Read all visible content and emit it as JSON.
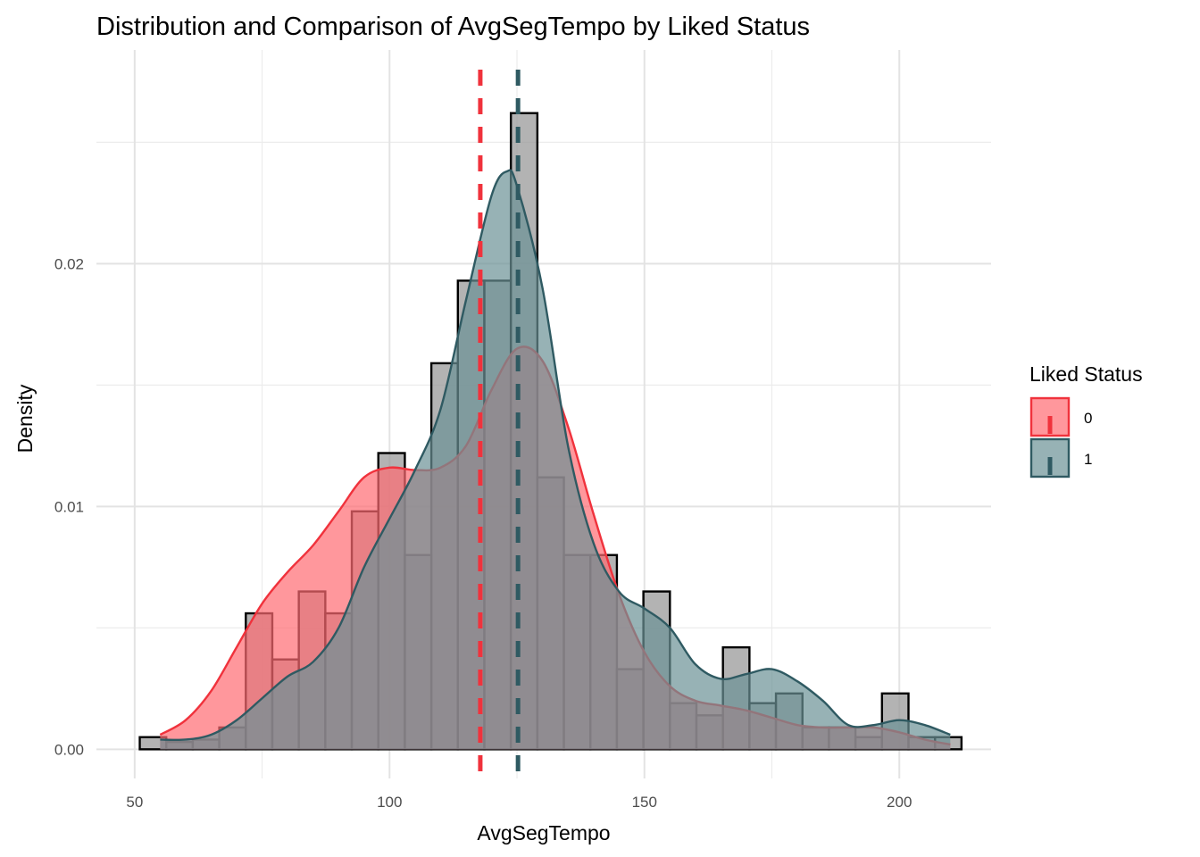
{
  "chart_data": {
    "type": "histogram-density",
    "title": "Distribution and Comparison of AvgSegTempo by Liked Status",
    "xlabel": "AvgSegTempo",
    "ylabel": "Density",
    "xlim": [
      42.5,
      218
    ],
    "ylim": [
      -0.0012,
      0.0288
    ],
    "x_ticks": [
      50,
      100,
      150,
      200
    ],
    "x_tick_labels": [
      "50",
      "100",
      "150",
      "200"
    ],
    "y_ticks": [
      0,
      0.01,
      0.02
    ],
    "y_tick_labels": [
      "0.00",
      "0.01",
      "0.02"
    ],
    "grid": true,
    "histogram": {
      "fill": "#999999",
      "edge": "#000000",
      "bins": [
        {
          "x0": 51.0,
          "x1": 56.2,
          "density": 0.0005
        },
        {
          "x0": 56.2,
          "x1": 61.4,
          "density": 0.0003
        },
        {
          "x0": 61.4,
          "x1": 66.6,
          "density": 0.0004
        },
        {
          "x0": 66.6,
          "x1": 71.8,
          "density": 0.0009
        },
        {
          "x0": 71.8,
          "x1": 77.0,
          "density": 0.0056
        },
        {
          "x0": 77.0,
          "x1": 82.2,
          "density": 0.0037
        },
        {
          "x0": 82.2,
          "x1": 87.4,
          "density": 0.0065
        },
        {
          "x0": 87.4,
          "x1": 92.6,
          "density": 0.0056
        },
        {
          "x0": 92.6,
          "x1": 97.8,
          "density": 0.0098
        },
        {
          "x0": 97.8,
          "x1": 103.0,
          "density": 0.0122
        },
        {
          "x0": 103.0,
          "x1": 108.2,
          "density": 0.008
        },
        {
          "x0": 108.2,
          "x1": 113.4,
          "density": 0.0159
        },
        {
          "x0": 113.4,
          "x1": 118.6,
          "density": 0.0193
        },
        {
          "x0": 118.6,
          "x1": 123.8,
          "density": 0.0193
        },
        {
          "x0": 123.8,
          "x1": 129.0,
          "density": 0.0262
        },
        {
          "x0": 129.0,
          "x1": 134.2,
          "density": 0.0112
        },
        {
          "x0": 134.2,
          "x1": 139.4,
          "density": 0.008
        },
        {
          "x0": 139.4,
          "x1": 144.6,
          "density": 0.008
        },
        {
          "x0": 144.6,
          "x1": 149.8,
          "density": 0.0033
        },
        {
          "x0": 149.8,
          "x1": 155.0,
          "density": 0.0065
        },
        {
          "x0": 155.0,
          "x1": 160.2,
          "density": 0.0019
        },
        {
          "x0": 160.2,
          "x1": 165.4,
          "density": 0.0014
        },
        {
          "x0": 165.4,
          "x1": 170.6,
          "density": 0.0042
        },
        {
          "x0": 170.6,
          "x1": 175.8,
          "density": 0.0019
        },
        {
          "x0": 175.8,
          "x1": 181.0,
          "density": 0.0023
        },
        {
          "x0": 181.0,
          "x1": 186.2,
          "density": 0.0009
        },
        {
          "x0": 186.2,
          "x1": 191.4,
          "density": 0.0009
        },
        {
          "x0": 191.4,
          "x1": 196.6,
          "density": 0.0005
        },
        {
          "x0": 196.6,
          "x1": 201.8,
          "density": 0.0023
        },
        {
          "x0": 201.8,
          "x1": 207.0,
          "density": 0.0005
        },
        {
          "x0": 207.0,
          "x1": 212.2,
          "density": 0.0005
        }
      ]
    },
    "series": [
      {
        "name": "0",
        "color": "#f0323c",
        "fill": "#ff6b72",
        "mean": 117.8,
        "density": {
          "x": [
            55,
            60,
            65,
            70,
            75,
            80,
            85,
            90,
            95,
            100,
            105,
            110,
            115,
            120,
            125,
            130,
            135,
            140,
            145,
            150,
            155,
            160,
            165,
            170,
            175,
            180,
            185,
            190,
            195,
            200,
            205,
            210
          ],
          "y": [
            0.0006,
            0.0012,
            0.0024,
            0.0042,
            0.006,
            0.0073,
            0.0084,
            0.0098,
            0.0112,
            0.0116,
            0.0115,
            0.0116,
            0.0125,
            0.0148,
            0.0165,
            0.016,
            0.0133,
            0.0097,
            0.0064,
            0.004,
            0.0026,
            0.002,
            0.0018,
            0.0016,
            0.0013,
            0.001,
            0.0009,
            0.0009,
            0.0009,
            0.0007,
            0.0004,
            0.0002
          ]
        }
      },
      {
        "name": "1",
        "color": "#2f5a62",
        "fill": "#6b9196",
        "mean": 125.2,
        "density": {
          "x": [
            55,
            60,
            65,
            70,
            75,
            80,
            85,
            90,
            95,
            100,
            105,
            110,
            115,
            120,
            123,
            125,
            130,
            135,
            140,
            145,
            150,
            155,
            160,
            165,
            170,
            175,
            180,
            185,
            190,
            195,
            200,
            205,
            210
          ],
          "y": [
            0.0004,
            0.0004,
            0.0006,
            0.0012,
            0.0021,
            0.003,
            0.0036,
            0.005,
            0.0075,
            0.0095,
            0.0115,
            0.014,
            0.0185,
            0.0228,
            0.0238,
            0.0232,
            0.019,
            0.0125,
            0.0085,
            0.0065,
            0.0058,
            0.005,
            0.0035,
            0.0029,
            0.0031,
            0.0033,
            0.0028,
            0.002,
            0.001,
            0.001,
            0.0012,
            0.001,
            0.0006
          ]
        }
      }
    ],
    "legend": {
      "title": "Liked Status",
      "placement": "right",
      "entries": [
        "0",
        "1"
      ]
    }
  }
}
